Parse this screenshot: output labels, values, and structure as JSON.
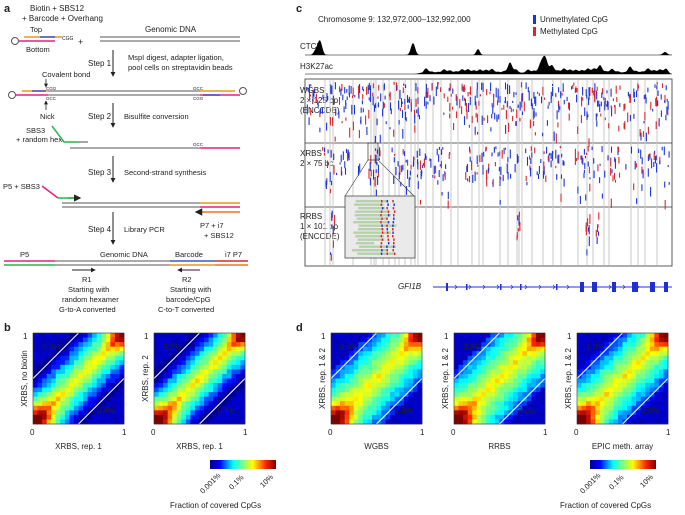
{
  "panel_a": {
    "label": "a",
    "adapter_line1": "Biotin + SBS12",
    "adapter_line2": "+ Barcode + Overhang",
    "top": "Top",
    "bottom": "Bottom",
    "plus": "+",
    "genomic_dna": "Genomic DNA",
    "cgg": "CGG",
    "gcc": "GCC",
    "step1_title": "Step 1",
    "step1_desc1": "MspI digest, adapter ligation,",
    "step1_desc2": "pool cells on streptavidin beads",
    "covalent_bond": "Covalent bond",
    "nick": "Nick",
    "step2_title": "Step 2",
    "step2_desc": "Bisulfite conversion",
    "sbs3": "SBS3",
    "random_hex": "+ random hex.",
    "step3_title": "Step 3",
    "step3_desc": "Second-strand synthesis",
    "p5_sbs3": "P5 + SBS3",
    "step4_title": "Step 4",
    "step4_desc": "Library PCR",
    "p7_label1": "P7 + i7",
    "p7_label2": "+ SBS12",
    "p5": "P5",
    "genomic_dna2": "Genomic DNA",
    "barcode": "Barcode",
    "i7p7": "i7 P7",
    "r1": "R1",
    "r1_desc1": "Starting with",
    "r1_desc2": "random hexamer",
    "r1_desc3": "G-to-A converted",
    "r2": "R2",
    "r2_desc1": "Starting with",
    "r2_desc2": "barcode/CpG",
    "r2_desc3": "C-to-T converted"
  },
  "panel_c": {
    "label": "c",
    "locus": "Chromosome 9: 132,972,000–132,992,000",
    "legend_unmeth": "Unmethylated CpG",
    "legend_meth": "Methylated CpG",
    "track_ctcf": "CTCF",
    "track_h3k27ac": "H3K27ac",
    "wgbs_1": "WGBS",
    "wgbs_2": "2 × 125 bp",
    "wgbs_3": "(ENCODE)",
    "xrbs_1": "XRBS",
    "xrbs_2": "2 × 75 bp",
    "rrbs_1": "RRBS",
    "rrbs_2": "1 × 101 bp",
    "rrbs_3": "(ENCODE)",
    "gene": "GFI1B",
    "colors": {
      "unmeth": "#1a35d6",
      "meth": "#d9262b"
    }
  },
  "panel_b": {
    "label": "b",
    "plots": [
      {
        "ylabel": "XRBS, no biotin",
        "xlabel": "XRBS, rep. 1",
        "upper": "0.3%",
        "lower": "0.4%"
      },
      {
        "ylabel": "XRBS, rep. 2",
        "xlabel": "XRBS, rep. 1",
        "upper": "0.2%",
        "lower": "0.4%"
      }
    ],
    "tick0": "0",
    "tick1": "1",
    "cbar_ticks": [
      "0.001%",
      "0.1%",
      "10%"
    ],
    "cbar_title": "Fraction of covered CpGs"
  },
  "panel_d": {
    "label": "d",
    "plots": [
      {
        "ylabel": "XRBS, rep. 1 & 2",
        "xlabel": "WGBS",
        "upper": "3.6%",
        "lower": "1.9%"
      },
      {
        "ylabel": "XRBS, rep. 1 & 2",
        "xlabel": "RRBS",
        "upper": "3.8%",
        "lower": "3.2%"
      },
      {
        "ylabel": "XRBS, rep. 1 & 2",
        "xlabel": "EPIC meth. array",
        "upper": "1.6%",
        "lower": "3.0%"
      }
    ],
    "tick0": "0",
    "tick1": "1",
    "cbar_ticks": [
      "0.001%",
      "0.1%",
      "10%"
    ],
    "cbar_title": "Fraction of covered CpGs"
  }
}
